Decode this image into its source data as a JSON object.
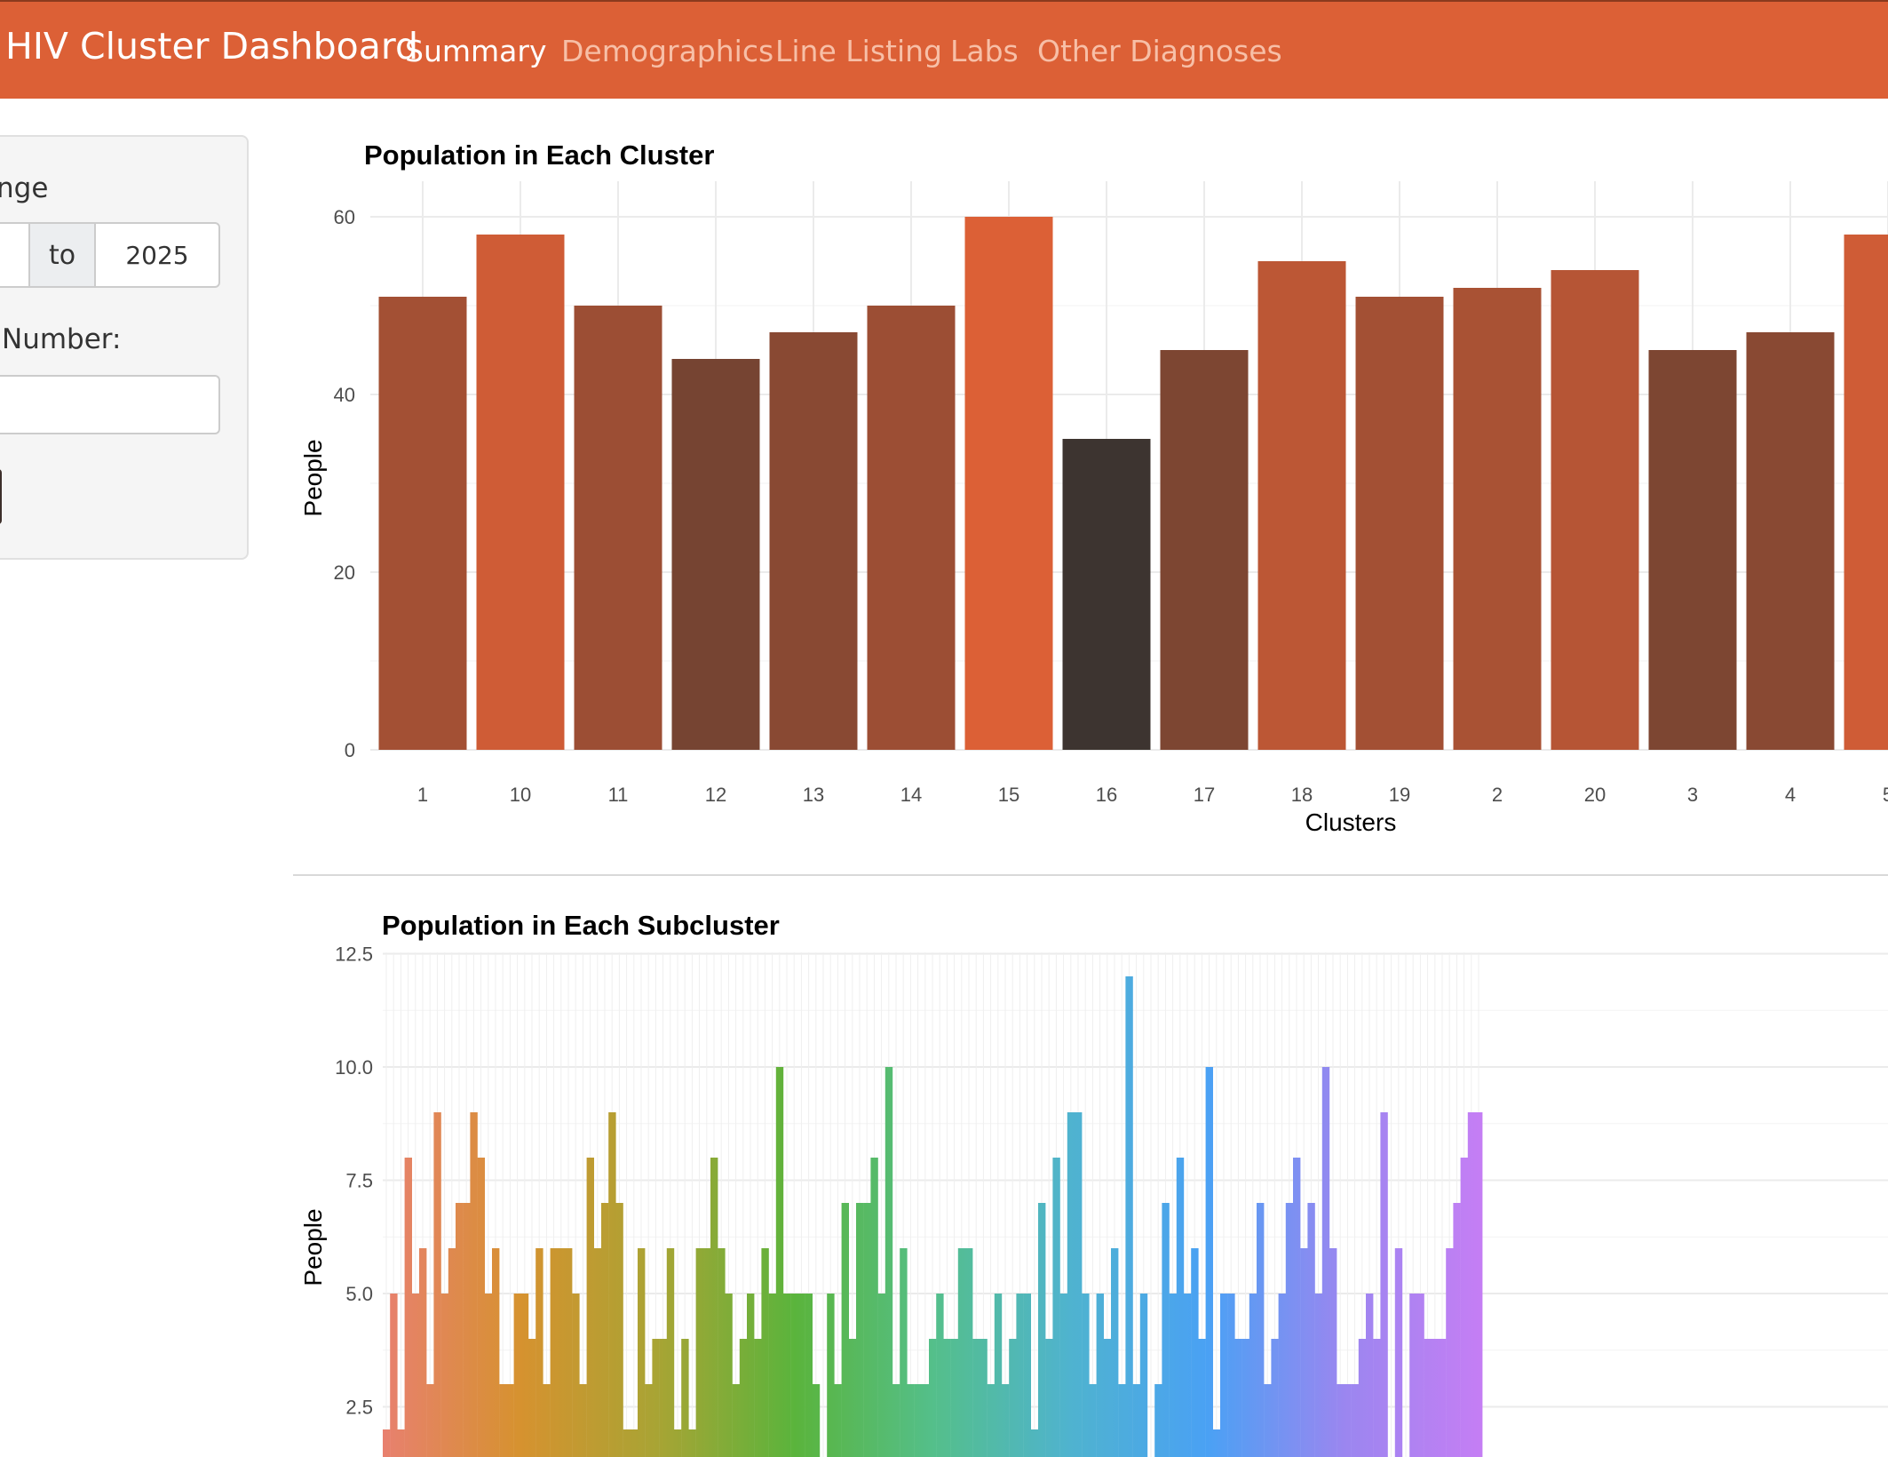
{
  "navbar": {
    "brand": "HIV Cluster Dashboard",
    "tabs": [
      {
        "label": "Summary",
        "active": true
      },
      {
        "label": "Demographics",
        "active": false
      },
      {
        "label": "Line Listing",
        "active": false
      },
      {
        "label": "Labs",
        "active": false
      },
      {
        "label": "Other Diagnoses",
        "active": false
      }
    ],
    "background_color": "#dc6036"
  },
  "sidebar": {
    "date_range_label": "nge",
    "date_separator": "to",
    "date_end_value": "2025",
    "cluster_number_label": "Number:",
    "cluster_number_value": ""
  },
  "chart_data": [
    {
      "type": "bar",
      "title": "Population in Each Cluster",
      "xlabel": "Clusters",
      "ylabel": "People",
      "ylim": [
        0,
        65
      ],
      "y_ticks": [
        "0",
        "20",
        "40",
        "60"
      ],
      "grid": true,
      "categories": [
        "1",
        "10",
        "11",
        "12",
        "13",
        "14",
        "15",
        "16",
        "17",
        "18",
        "19",
        "2",
        "20",
        "3",
        "4",
        "5"
      ],
      "values": [
        51,
        58,
        50,
        44,
        47,
        50,
        60,
        35,
        45,
        55,
        51,
        52,
        54,
        45,
        47,
        58
      ],
      "color_scale": [
        "#3d3430",
        "#dc6036"
      ]
    },
    {
      "type": "bar",
      "title": "Population in Each Subcluster",
      "ylabel": "People",
      "y_ticks": [
        "2.5",
        "5.0",
        "7.5",
        "10.0",
        "12.5"
      ],
      "y_visible_range": [
        1.5,
        12.5
      ],
      "grid": true,
      "values": [
        2,
        5,
        2,
        8,
        5,
        6,
        3,
        9,
        5,
        6,
        7,
        7,
        9,
        8,
        5,
        6,
        3,
        3,
        5,
        5,
        4,
        6,
        3,
        6,
        6,
        6,
        5,
        3,
        8,
        6,
        7,
        9,
        7,
        2,
        2,
        6,
        3,
        4,
        4,
        6,
        2,
        4,
        2,
        6,
        6,
        8,
        6,
        5,
        3,
        4,
        5,
        4,
        6,
        5,
        10,
        5,
        5,
        5,
        5,
        3,
        0,
        5,
        3,
        7,
        4,
        7,
        7,
        8,
        5,
        10,
        3,
        6,
        3,
        3,
        3,
        4,
        5,
        4,
        4,
        6,
        6,
        4,
        4,
        3,
        5,
        3,
        4,
        5,
        5,
        2,
        7,
        4,
        8,
        5,
        9,
        9,
        5,
        3,
        5,
        4,
        6,
        3,
        12,
        3,
        5,
        0,
        3,
        7,
        5,
        8,
        5,
        6,
        4,
        10,
        2,
        5,
        5,
        4,
        4,
        5,
        7,
        3,
        4,
        5,
        7,
        8,
        6,
        7,
        5,
        10,
        6,
        3,
        3,
        3,
        4,
        5,
        4,
        9,
        1,
        6,
        1,
        5,
        5,
        4,
        4,
        4,
        6,
        7,
        8,
        9,
        9
      ],
      "gradient": [
        "#e8806f",
        "#d6922f",
        "#a8a434",
        "#5ab43c",
        "#54bf8a",
        "#4fb3cf",
        "#4aa1f4",
        "#9b86f0",
        "#c57ef4"
      ]
    }
  ]
}
